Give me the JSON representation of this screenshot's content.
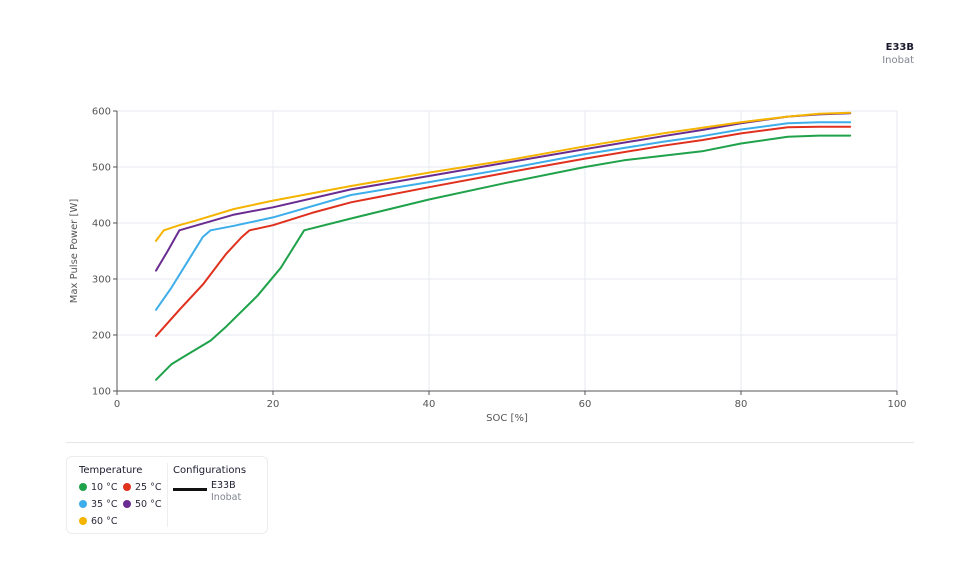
{
  "header": {
    "config_name": "E33B",
    "config_maker": "Inobat"
  },
  "legend": {
    "temperature_title": "Temperature",
    "temperatures": [
      {
        "label": "10 °C",
        "color": "#1fa24a"
      },
      {
        "label": "25 °C",
        "color": "#e0301e"
      },
      {
        "label": "35 °C",
        "color": "#3daee9"
      },
      {
        "label": "50 °C",
        "color": "#6a2c91"
      },
      {
        "label": "60 °C",
        "color": "#f5b400"
      }
    ],
    "configurations_title": "Configurations",
    "configurations": [
      {
        "name": "E33B",
        "maker": "Inobat",
        "line_color": "#111111"
      }
    ]
  },
  "chart_data": {
    "type": "line",
    "title": "",
    "xlabel": "SOC [%]",
    "ylabel": "Max Pulse Power [W]",
    "xlim": [
      0,
      100
    ],
    "ylim": [
      100,
      600
    ],
    "xticks": [
      0,
      20,
      40,
      60,
      80,
      100
    ],
    "yticks": [
      100,
      200,
      300,
      400,
      500,
      600
    ],
    "grid": true,
    "legend_position": "bottom-left",
    "series": [
      {
        "name": "10 °C",
        "color": "#1fa24a",
        "x": [
          5,
          7,
          9,
          12,
          14,
          18,
          21,
          24,
          30,
          40,
          50,
          60,
          65,
          70,
          75,
          80,
          86,
          90,
          94
        ],
        "y": [
          120,
          148,
          165,
          190,
          215,
          270,
          320,
          387,
          408,
          442,
          472,
          500,
          512,
          520,
          528,
          542,
          554,
          556,
          556
        ]
      },
      {
        "name": "25 °C",
        "color": "#e0301e",
        "x": [
          5,
          8,
          11,
          14,
          16,
          17,
          20,
          25,
          30,
          40,
          50,
          60,
          70,
          75,
          80,
          86,
          90,
          94
        ],
        "y": [
          198,
          245,
          290,
          345,
          375,
          387,
          396,
          418,
          437,
          464,
          490,
          515,
          538,
          548,
          560,
          571,
          572,
          572
        ]
      },
      {
        "name": "35 °C",
        "color": "#3daee9",
        "x": [
          5,
          7,
          9,
          11,
          12,
          15,
          20,
          30,
          40,
          50,
          60,
          70,
          75,
          80,
          86,
          90,
          94
        ],
        "y": [
          245,
          285,
          330,
          375,
          387,
          395,
          410,
          450,
          473,
          497,
          523,
          545,
          555,
          567,
          578,
          580,
          580
        ]
      },
      {
        "name": "50 °C",
        "color": "#6a2c91",
        "x": [
          5,
          6.5,
          8,
          10,
          15,
          20,
          30,
          40,
          50,
          60,
          70,
          75,
          80,
          86,
          90,
          94
        ],
        "y": [
          315,
          350,
          387,
          395,
          415,
          428,
          460,
          484,
          508,
          532,
          555,
          566,
          578,
          590,
          594,
          596
        ]
      },
      {
        "name": "60 °C",
        "color": "#f5b400",
        "x": [
          5,
          6,
          8,
          10,
          15,
          20,
          30,
          40,
          50,
          60,
          70,
          75,
          80,
          86,
          90,
          94
        ],
        "y": [
          368,
          387,
          396,
          404,
          425,
          440,
          466,
          490,
          512,
          537,
          560,
          570,
          580,
          590,
          595,
          597
        ]
      }
    ]
  }
}
